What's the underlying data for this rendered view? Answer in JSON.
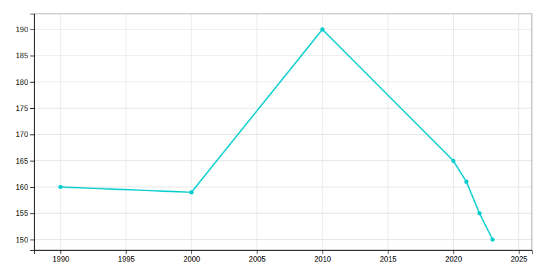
{
  "chart_data": {
    "type": "line",
    "x": [
      1990,
      2000,
      2010,
      2020,
      2021,
      2022,
      2023
    ],
    "values": [
      160,
      159,
      190,
      165,
      161,
      155,
      150
    ],
    "color": "#00CCCC",
    "marker": "circle",
    "xlim": [
      1988,
      2026
    ],
    "ylim": [
      148,
      193
    ],
    "xticks": [
      1990,
      1995,
      2000,
      2005,
      2010,
      2015,
      2020,
      2025
    ],
    "yticks": [
      150,
      155,
      160,
      165,
      170,
      175,
      180,
      185,
      190
    ],
    "grid": true
  }
}
